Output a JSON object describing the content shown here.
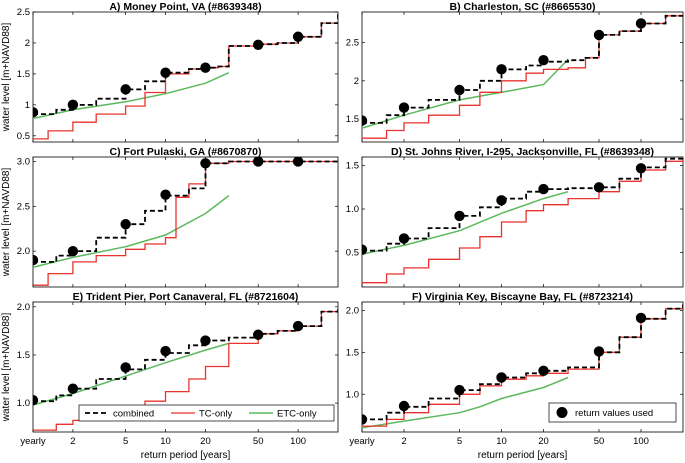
{
  "figure": {
    "xlabel": "return period [years]",
    "ylabel": "water level [m+NAVD88]",
    "x_ticks": [
      1,
      2,
      5,
      10,
      20,
      50,
      100
    ],
    "x_tick_labels": [
      "yearly",
      "2",
      "5",
      "10",
      "20",
      "50",
      "100"
    ],
    "xlim": [
      1,
      200
    ],
    "colors": {
      "combined": "#000000",
      "tc": "#e8332e",
      "etc": "#5cb85c",
      "markers": "#000000"
    }
  },
  "legend": {
    "combined": "combined",
    "tc": "TC-only",
    "etc": "ETC-only",
    "markers": "return values used"
  },
  "chart_data": [
    {
      "type": "line",
      "title": "A) Money Point, VA (#8639348)",
      "ylim": [
        0.4,
        2.5
      ],
      "yticks": [
        0.5,
        1,
        1.5,
        2,
        2.5
      ],
      "ytick_labels": [
        "0.5",
        "1",
        "1.5",
        "2",
        "2.5"
      ],
      "series": {
        "combined": {
          "x": [
            1,
            1.5,
            2,
            3,
            5,
            7,
            10,
            15,
            20,
            25,
            30,
            50,
            70,
            100,
            150,
            200
          ],
          "y": [
            0.85,
            0.92,
            1.0,
            1.1,
            1.25,
            1.38,
            1.52,
            1.58,
            1.6,
            1.62,
            1.95,
            1.98,
            2.0,
            2.1,
            2.32,
            2.48
          ]
        },
        "tc": {
          "x": [
            1,
            1.3,
            2,
            3,
            5,
            7,
            10,
            15,
            20,
            25,
            30,
            50,
            70,
            100,
            150,
            200
          ],
          "y": [
            0.45,
            0.58,
            0.72,
            0.85,
            0.98,
            1.2,
            1.5,
            1.58,
            1.6,
            1.62,
            1.95,
            1.98,
            2.0,
            2.1,
            2.32,
            2.48
          ]
        },
        "etc": {
          "x": [
            1,
            2,
            5,
            10,
            20,
            30
          ],
          "y": [
            0.78,
            0.92,
            1.05,
            1.18,
            1.35,
            1.52
          ]
        },
        "markers": {
          "x": [
            1,
            2,
            5,
            10,
            20,
            50,
            100
          ],
          "y": [
            0.88,
            1.0,
            1.25,
            1.52,
            1.6,
            1.97,
            2.1
          ]
        }
      }
    },
    {
      "type": "line",
      "title": "B) Charleston, SC (#8665530)",
      "ylim": [
        1.2,
        2.9
      ],
      "yticks": [
        1.5,
        2,
        2.5
      ],
      "ytick_labels": [
        "1.5",
        "2",
        "2.5"
      ],
      "series": {
        "combined": {
          "x": [
            1,
            1.5,
            2,
            3,
            5,
            7,
            10,
            15,
            20,
            30,
            40,
            50,
            70,
            100,
            150,
            200
          ],
          "y": [
            1.45,
            1.55,
            1.65,
            1.75,
            1.88,
            2.0,
            2.15,
            2.2,
            2.25,
            2.27,
            2.3,
            2.6,
            2.65,
            2.75,
            2.85,
            2.88
          ]
        },
        "tc": {
          "x": [
            1,
            1.5,
            2,
            3,
            5,
            7,
            10,
            15,
            20,
            30,
            40,
            50,
            70,
            100,
            150,
            200
          ],
          "y": [
            1.25,
            1.35,
            1.45,
            1.55,
            1.68,
            1.85,
            2.0,
            2.1,
            2.15,
            2.17,
            2.3,
            2.6,
            2.65,
            2.75,
            2.85,
            2.88
          ]
        },
        "etc": {
          "x": [
            1,
            2,
            5,
            10,
            20,
            30
          ],
          "y": [
            1.38,
            1.55,
            1.75,
            1.85,
            1.95,
            2.28
          ]
        },
        "markers": {
          "x": [
            1,
            2,
            5,
            10,
            20,
            50,
            100
          ],
          "y": [
            1.48,
            1.65,
            1.88,
            2.15,
            2.27,
            2.6,
            2.75
          ]
        }
      }
    },
    {
      "type": "line",
      "title": "C) Fort Pulaski, GA (#8670870)",
      "ylim": [
        1.6,
        3.05
      ],
      "yticks": [
        2,
        2.5,
        3
      ],
      "ytick_labels": [
        "2.0",
        "2.5",
        "3.0"
      ],
      "series": {
        "combined": {
          "x": [
            1,
            1.5,
            2,
            3,
            5,
            7,
            10,
            15,
            20,
            30,
            50,
            70,
            100,
            150,
            200
          ],
          "y": [
            1.88,
            1.95,
            2.0,
            2.15,
            2.3,
            2.45,
            2.62,
            2.7,
            2.98,
            3.0,
            3.0,
            3.0,
            3.0,
            3.0,
            3.0
          ]
        },
        "tc": {
          "x": [
            1,
            1.3,
            2,
            3,
            5,
            7,
            10,
            12,
            15,
            20,
            30,
            50,
            100,
            200
          ],
          "y": [
            1.62,
            1.75,
            1.88,
            1.95,
            2.02,
            2.08,
            2.15,
            2.6,
            2.75,
            2.98,
            3.0,
            3.0,
            3.0,
            3.0
          ]
        },
        "etc": {
          "x": [
            1,
            2,
            5,
            10,
            20,
            30
          ],
          "y": [
            1.82,
            1.93,
            2.05,
            2.18,
            2.42,
            2.62
          ]
        },
        "markers": {
          "x": [
            1,
            2,
            5,
            10,
            20,
            50,
            100
          ],
          "y": [
            1.9,
            2.0,
            2.3,
            2.63,
            2.98,
            3.0,
            3.0
          ]
        }
      }
    },
    {
      "type": "line",
      "title": "D) St. Johns River, I-295, Jacksonville, FL (#8639348)",
      "ylim": [
        0.1,
        1.6
      ],
      "yticks": [
        0.5,
        1,
        1.5
      ],
      "ytick_labels": [
        "0.5",
        "1.0",
        "1.5"
      ],
      "series": {
        "combined": {
          "x": [
            1,
            1.5,
            2,
            3,
            5,
            7,
            10,
            15,
            20,
            30,
            50,
            70,
            100,
            150,
            200
          ],
          "y": [
            0.52,
            0.6,
            0.66,
            0.78,
            0.92,
            1.02,
            1.12,
            1.2,
            1.23,
            1.24,
            1.25,
            1.35,
            1.48,
            1.58,
            1.62
          ]
        },
        "tc": {
          "x": [
            1,
            1.5,
            2,
            3,
            5,
            7,
            10,
            15,
            20,
            30,
            50,
            70,
            100,
            150,
            200
          ],
          "y": [
            0.15,
            0.25,
            0.32,
            0.42,
            0.55,
            0.68,
            0.85,
            0.98,
            1.05,
            1.12,
            1.2,
            1.32,
            1.45,
            1.55,
            1.6
          ]
        },
        "etc": {
          "x": [
            1,
            2,
            5,
            10,
            20,
            30
          ],
          "y": [
            0.48,
            0.58,
            0.75,
            0.95,
            1.12,
            1.2
          ]
        },
        "markers": {
          "x": [
            1,
            2,
            5,
            10,
            20,
            50,
            100
          ],
          "y": [
            0.53,
            0.66,
            0.92,
            1.1,
            1.23,
            1.25,
            1.47
          ]
        }
      }
    },
    {
      "type": "line",
      "title": "E) Trident Pier, Port Canaveral, FL (#8721604)",
      "ylim": [
        0.7,
        2.05
      ],
      "yticks": [
        1,
        1.5,
        2
      ],
      "ytick_labels": [
        "1.0",
        "1.5",
        "2.0"
      ],
      "series": {
        "combined": {
          "x": [
            1,
            1.5,
            2,
            3,
            5,
            7,
            10,
            15,
            20,
            30,
            50,
            70,
            100,
            150,
            200
          ],
          "y": [
            1.02,
            1.08,
            1.15,
            1.25,
            1.35,
            1.45,
            1.52,
            1.6,
            1.65,
            1.68,
            1.72,
            1.75,
            1.8,
            1.95,
            2.0
          ]
        },
        "tc": {
          "x": [
            1,
            1.5,
            2,
            3,
            5,
            7,
            10,
            15,
            20,
            30,
            50,
            70,
            100,
            150,
            200
          ],
          "y": [
            0.72,
            0.78,
            0.82,
            0.88,
            0.95,
            1.02,
            1.12,
            1.25,
            1.38,
            1.62,
            1.72,
            1.75,
            1.8,
            1.95,
            2.0
          ]
        },
        "etc": {
          "x": [
            1,
            2,
            5,
            10,
            20,
            30
          ],
          "y": [
            0.98,
            1.1,
            1.28,
            1.42,
            1.55,
            1.62
          ]
        },
        "markers": {
          "x": [
            1,
            2,
            5,
            10,
            20,
            50,
            100
          ],
          "y": [
            1.03,
            1.15,
            1.37,
            1.54,
            1.65,
            1.71,
            1.8
          ]
        }
      }
    },
    {
      "type": "line",
      "title": "F) Virginia Key, Biscayne Bay, FL (#8723214)",
      "ylim": [
        0.55,
        2.1
      ],
      "yticks": [
        1,
        1.5,
        2
      ],
      "ytick_labels": [
        "1.0",
        "1.5",
        "2.0"
      ],
      "series": {
        "combined": {
          "x": [
            1,
            1.5,
            2,
            3,
            5,
            7,
            10,
            15,
            20,
            30,
            50,
            70,
            100,
            150,
            200
          ],
          "y": [
            0.7,
            0.78,
            0.85,
            0.95,
            1.05,
            1.12,
            1.2,
            1.25,
            1.28,
            1.32,
            1.5,
            1.68,
            1.9,
            2.02,
            2.07
          ]
        },
        "tc": {
          "x": [
            1,
            1.5,
            2,
            3,
            5,
            7,
            10,
            15,
            20,
            30,
            50,
            70,
            100,
            150,
            200
          ],
          "y": [
            0.62,
            0.7,
            0.78,
            0.88,
            1.0,
            1.1,
            1.18,
            1.22,
            1.25,
            1.3,
            1.5,
            1.68,
            1.9,
            2.02,
            2.07
          ]
        },
        "etc": {
          "x": [
            1,
            2,
            5,
            7,
            10,
            20,
            30
          ],
          "y": [
            0.6,
            0.68,
            0.78,
            0.85,
            0.95,
            1.08,
            1.2
          ]
        },
        "markers": {
          "x": [
            1,
            2,
            5,
            10,
            20,
            50,
            100
          ],
          "y": [
            0.7,
            0.86,
            1.05,
            1.2,
            1.28,
            1.51,
            1.91
          ]
        }
      }
    }
  ]
}
